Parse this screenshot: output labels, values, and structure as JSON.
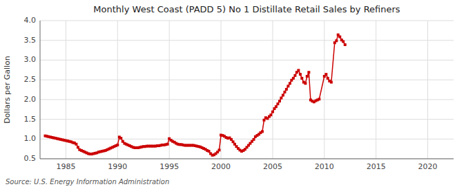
{
  "chart_data": {
    "type": "line",
    "title": "Monthly West Coast (PADD 5) No 1 Distillate Retail Sales by Refiners",
    "ylabel": "Dollars per Gallon",
    "annotations": [
      "Source: U.S. Energy Information Administration"
    ],
    "color": "#cc0000",
    "marker": "square",
    "grid": true,
    "xlim": [
      1982.5,
      2022.5
    ],
    "ylim": [
      0.5,
      4.0
    ],
    "xticks": [
      1985,
      1990,
      1995,
      2000,
      2005,
      2010,
      2015,
      2020
    ],
    "yticks": [
      0.5,
      {
        "value": 1.0,
        "label": "1.0"
      },
      1.5,
      {
        "value": 2.0,
        "label": "2.0"
      },
      2.5,
      {
        "value": 3.0,
        "label": "3.0"
      },
      3.5,
      {
        "value": 4.0,
        "label": "4.0"
      }
    ],
    "x": [
      1983.0,
      1983.17,
      1983.33,
      1983.5,
      1983.67,
      1983.83,
      1984.0,
      1984.17,
      1984.33,
      1984.5,
      1984.67,
      1984.83,
      1985.0,
      1985.17,
      1985.33,
      1985.5,
      1985.67,
      1985.83,
      1986.0,
      1986.17,
      1986.33,
      1986.5,
      1986.67,
      1986.83,
      1987.0,
      1987.17,
      1987.33,
      1987.5,
      1987.67,
      1987.83,
      1988.0,
      1988.17,
      1988.33,
      1988.5,
      1988.67,
      1988.83,
      1989.0,
      1989.17,
      1989.33,
      1989.5,
      1989.67,
      1989.83,
      1990.0,
      1990.17,
      1990.33,
      1990.5,
      1990.67,
      1990.83,
      1991.0,
      1991.17,
      1991.33,
      1991.5,
      1991.67,
      1991.83,
      1992.0,
      1992.17,
      1992.33,
      1992.5,
      1992.67,
      1992.83,
      1993.0,
      1993.17,
      1993.33,
      1993.5,
      1993.67,
      1993.83,
      1994.0,
      1994.17,
      1994.33,
      1994.5,
      1994.67,
      1994.83,
      1995.0,
      1995.17,
      1995.33,
      1995.5,
      1995.67,
      1995.83,
      1996.0,
      1996.17,
      1996.33,
      1996.5,
      1996.67,
      1996.83,
      1997.0,
      1997.17,
      1997.33,
      1997.5,
      1997.67,
      1997.83,
      1998.0,
      1998.17,
      1998.33,
      1998.5,
      1998.67,
      1998.83,
      1999.0,
      1999.17,
      1999.33,
      1999.5,
      1999.67,
      1999.83,
      2000.0,
      2000.17,
      2000.33,
      2000.5,
      2000.67,
      2000.83,
      2001.0,
      2001.17,
      2001.33,
      2001.5,
      2001.67,
      2001.83,
      2002.0,
      2002.17,
      2002.33,
      2002.5,
      2002.67,
      2002.83,
      2003.0,
      2003.17,
      2003.33,
      2003.5,
      2003.67,
      2003.83,
      2004.0,
      2004.17,
      2004.33,
      2004.5,
      2004.67,
      2004.83,
      2005.0,
      2005.17,
      2005.33,
      2005.5,
      2005.67,
      2005.83,
      2006.0,
      2006.17,
      2006.33,
      2006.5,
      2006.67,
      2006.83,
      2007.0,
      2007.17,
      2007.33,
      2007.5,
      2007.67,
      2007.83,
      2008.0,
      2008.17,
      2008.33,
      2008.5,
      2008.67,
      2008.83,
      2009.0,
      2009.17,
      2009.33,
      2009.5,
      2010.0,
      2010.17,
      2010.33,
      2010.5,
      2010.67,
      2011.0,
      2011.17,
      2011.33,
      2011.5,
      2011.67,
      2011.83,
      2012.0
    ],
    "values": [
      1.08,
      1.07,
      1.06,
      1.05,
      1.04,
      1.03,
      1.02,
      1.01,
      1.0,
      0.99,
      0.98,
      0.97,
      0.96,
      0.95,
      0.94,
      0.93,
      0.91,
      0.9,
      0.87,
      0.79,
      0.73,
      0.71,
      0.69,
      0.67,
      0.65,
      0.63,
      0.62,
      0.62,
      0.63,
      0.64,
      0.65,
      0.67,
      0.68,
      0.69,
      0.7,
      0.71,
      0.73,
      0.75,
      0.77,
      0.79,
      0.81,
      0.83,
      0.85,
      1.05,
      1.02,
      0.94,
      0.89,
      0.87,
      0.85,
      0.83,
      0.81,
      0.79,
      0.78,
      0.78,
      0.78,
      0.79,
      0.8,
      0.81,
      0.81,
      0.82,
      0.82,
      0.82,
      0.82,
      0.82,
      0.82,
      0.83,
      0.83,
      0.84,
      0.85,
      0.85,
      0.86,
      0.87,
      1.01,
      0.97,
      0.94,
      0.92,
      0.89,
      0.87,
      0.86,
      0.86,
      0.85,
      0.84,
      0.84,
      0.84,
      0.84,
      0.84,
      0.84,
      0.83,
      0.82,
      0.81,
      0.8,
      0.78,
      0.76,
      0.74,
      0.71,
      0.69,
      0.63,
      0.59,
      0.6,
      0.63,
      0.67,
      0.72,
      1.1,
      1.09,
      1.07,
      1.04,
      1.02,
      1.03,
      0.99,
      0.93,
      0.87,
      0.81,
      0.76,
      0.72,
      0.69,
      0.71,
      0.74,
      0.79,
      0.84,
      0.89,
      0.94,
      0.99,
      1.06,
      1.09,
      1.12,
      1.16,
      1.19,
      1.48,
      1.54,
      1.52,
      1.57,
      1.61,
      1.69,
      1.77,
      1.82,
      1.89,
      1.96,
      2.04,
      2.11,
      2.19,
      2.26,
      2.34,
      2.41,
      2.49,
      2.54,
      2.61,
      2.69,
      2.74,
      2.64,
      2.54,
      2.44,
      2.41,
      2.59,
      2.69,
      1.99,
      1.96,
      1.94,
      1.97,
      1.99,
      2.01,
      2.59,
      2.64,
      2.54,
      2.47,
      2.44,
      3.44,
      3.49,
      3.64,
      3.59,
      3.51,
      3.47,
      3.39
    ]
  }
}
